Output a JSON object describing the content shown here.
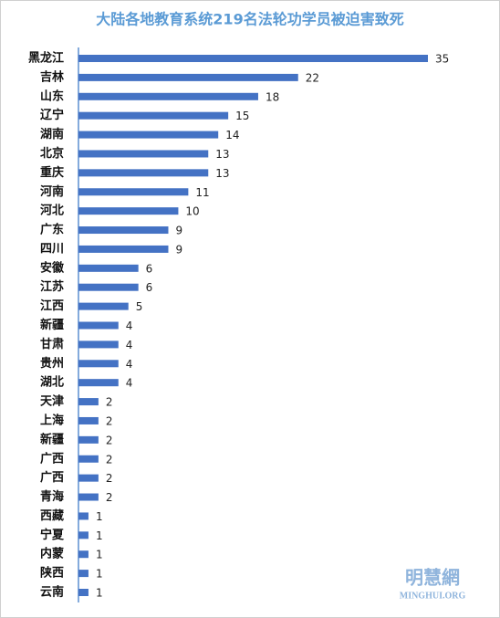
{
  "chart_data": {
    "type": "bar",
    "orientation": "horizontal",
    "title": "大陆各地教育系统219名法轮功学员被迫害致死",
    "categories": [
      "黑龙江",
      "吉林",
      "山东",
      "辽宁",
      "湖南",
      "北京",
      "重庆",
      "河南",
      "河北",
      "广东",
      "四川",
      "安徽",
      "江苏",
      "江西",
      "新疆",
      "甘肃",
      "贵州",
      "湖北",
      "天津",
      "上海",
      "新疆",
      "广西",
      "广西",
      "青海",
      "西藏",
      "宁夏",
      "内蒙",
      "陕西",
      "云南"
    ],
    "values": [
      35,
      22,
      18,
      15,
      14,
      13,
      13,
      11,
      10,
      9,
      9,
      6,
      6,
      5,
      4,
      4,
      4,
      4,
      2,
      2,
      2,
      2,
      2,
      2,
      1,
      1,
      1,
      1,
      1
    ],
    "color": "#4472c4"
  },
  "watermark": {
    "name": "明慧網",
    "url": "MINGHUI.ORG"
  }
}
